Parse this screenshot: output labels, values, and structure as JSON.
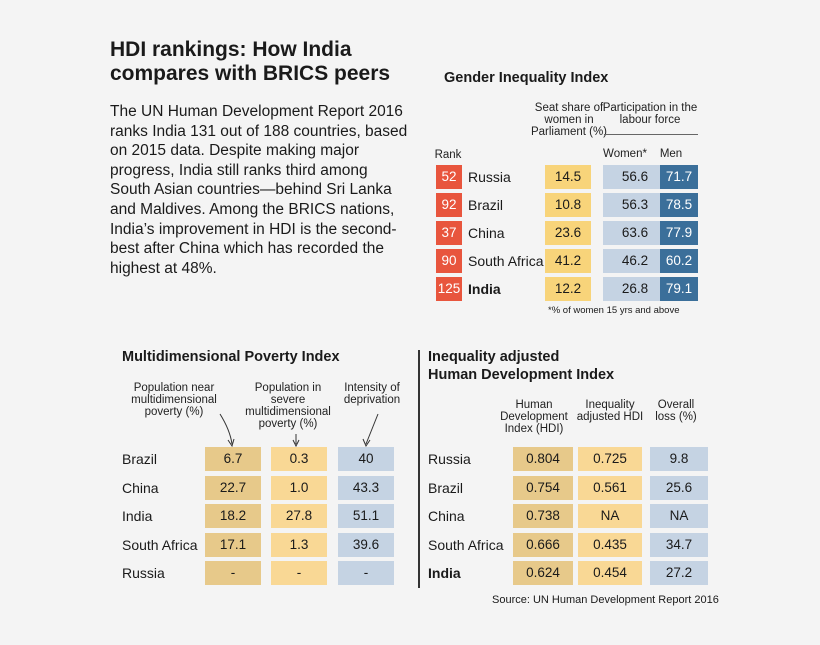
{
  "title": "HDI rankings: How India compares with BRICS peers",
  "intro": "The UN Human Development Report 2016 ranks India 131 out of 188 countries, based on 2015 data. Despite making major progress, India still ranks third among South Asian countries—behind Sri Lanka and Maldives. Among the BRICS nations, India’s improvement in HDI is the second-best after China which has recorded the highest at 48%.",
  "gii": {
    "title": "Gender Inequality Index",
    "rank_header": "Rank",
    "seat_header": "Seat share of women in Parliament (%)",
    "labour_header": "Participation in the labour force",
    "women_header": "Women*",
    "men_header": "Men",
    "footnote": "*% of women 15 yrs and above",
    "rows": [
      {
        "country": "Russia",
        "rank": "52",
        "seat": "14.5",
        "women": "56.6",
        "men": "71.7"
      },
      {
        "country": "Brazil",
        "rank": "92",
        "seat": "10.8",
        "women": "56.3",
        "men": "78.5"
      },
      {
        "country": "China",
        "rank": "37",
        "seat": "23.6",
        "women": "63.6",
        "men": "77.9"
      },
      {
        "country": "South Africa",
        "rank": "90",
        "seat": "41.2",
        "women": "46.2",
        "men": "60.2"
      },
      {
        "country": "India",
        "rank": "125",
        "seat": "12.2",
        "women": "26.8",
        "men": "79.1"
      }
    ]
  },
  "mpi": {
    "title": "Multidimensional Poverty Index",
    "h1": "Population near multidimensional poverty (%)",
    "h2": "Population in severe multidimensional poverty (%)",
    "h3": "Intensity of deprivation",
    "rows": [
      {
        "country": "Brazil",
        "near": "6.7",
        "severe": "0.3",
        "intensity": "40"
      },
      {
        "country": "China",
        "near": "22.7",
        "severe": "1.0",
        "intensity": "43.3"
      },
      {
        "country": "India",
        "near": "18.2",
        "severe": "27.8",
        "intensity": "51.1"
      },
      {
        "country": "South Africa",
        "near": "17.1",
        "severe": "1.3",
        "intensity": "39.6"
      },
      {
        "country": "Russia",
        "near": "-",
        "severe": "-",
        "intensity": "-"
      }
    ]
  },
  "ihdi": {
    "title_line1": "Inequality adjusted",
    "title_line2": "Human Development Index",
    "h1": "Human Development Index (HDI)",
    "h2": "Inequality adjusted HDI",
    "h3": "Overall loss (%)",
    "rows": [
      {
        "country": "Russia",
        "hdi": "0.804",
        "ihdi": "0.725",
        "loss": "9.8"
      },
      {
        "country": "Brazil",
        "hdi": "0.754",
        "ihdi": "0.561",
        "loss": "25.6"
      },
      {
        "country": "China",
        "hdi": "0.738",
        "ihdi": "NA",
        "loss": "NA"
      },
      {
        "country": "South Africa",
        "hdi": "0.666",
        "ihdi": "0.435",
        "loss": "34.7"
      },
      {
        "country": "India",
        "hdi": "0.624",
        "ihdi": "0.454",
        "loss": "27.2"
      }
    ]
  },
  "source": "Source: UN Human Development Report 2016",
  "chart_data": [
    {
      "type": "table",
      "title": "Gender Inequality Index",
      "columns": [
        "Rank",
        "Seat share of women in Parliament (%)",
        "Women*",
        "Men"
      ],
      "categories": [
        "Russia",
        "Brazil",
        "China",
        "South Africa",
        "India"
      ],
      "series": [
        {
          "name": "Rank",
          "values": [
            52,
            92,
            37,
            90,
            125
          ]
        },
        {
          "name": "Seat share of women in Parliament (%)",
          "values": [
            14.5,
            10.8,
            23.6,
            41.2,
            12.2
          ]
        },
        {
          "name": "Women*",
          "values": [
            56.6,
            56.3,
            63.6,
            46.2,
            26.8
          ]
        },
        {
          "name": "Men",
          "values": [
            71.7,
            78.5,
            77.9,
            60.2,
            79.1
          ]
        }
      ]
    },
    {
      "type": "table",
      "title": "Multidimensional Poverty Index",
      "categories": [
        "Brazil",
        "China",
        "India",
        "South Africa",
        "Russia"
      ],
      "series": [
        {
          "name": "Population near multidimensional poverty (%)",
          "values": [
            6.7,
            22.7,
            18.2,
            17.1,
            null
          ]
        },
        {
          "name": "Population in severe multidimensional poverty (%)",
          "values": [
            0.3,
            1.0,
            27.8,
            1.3,
            null
          ]
        },
        {
          "name": "Intensity of deprivation",
          "values": [
            40,
            43.3,
            51.1,
            39.6,
            null
          ]
        }
      ]
    },
    {
      "type": "table",
      "title": "Inequality adjusted Human Development Index",
      "categories": [
        "Russia",
        "Brazil",
        "China",
        "South Africa",
        "India"
      ],
      "series": [
        {
          "name": "Human Development Index (HDI)",
          "values": [
            0.804,
            0.754,
            0.738,
            0.666,
            0.624
          ]
        },
        {
          "name": "Inequality adjusted HDI",
          "values": [
            0.725,
            0.561,
            null,
            0.435,
            0.454
          ]
        },
        {
          "name": "Overall loss (%)",
          "values": [
            9.8,
            25.6,
            null,
            34.7,
            27.2
          ]
        }
      ]
    }
  ]
}
